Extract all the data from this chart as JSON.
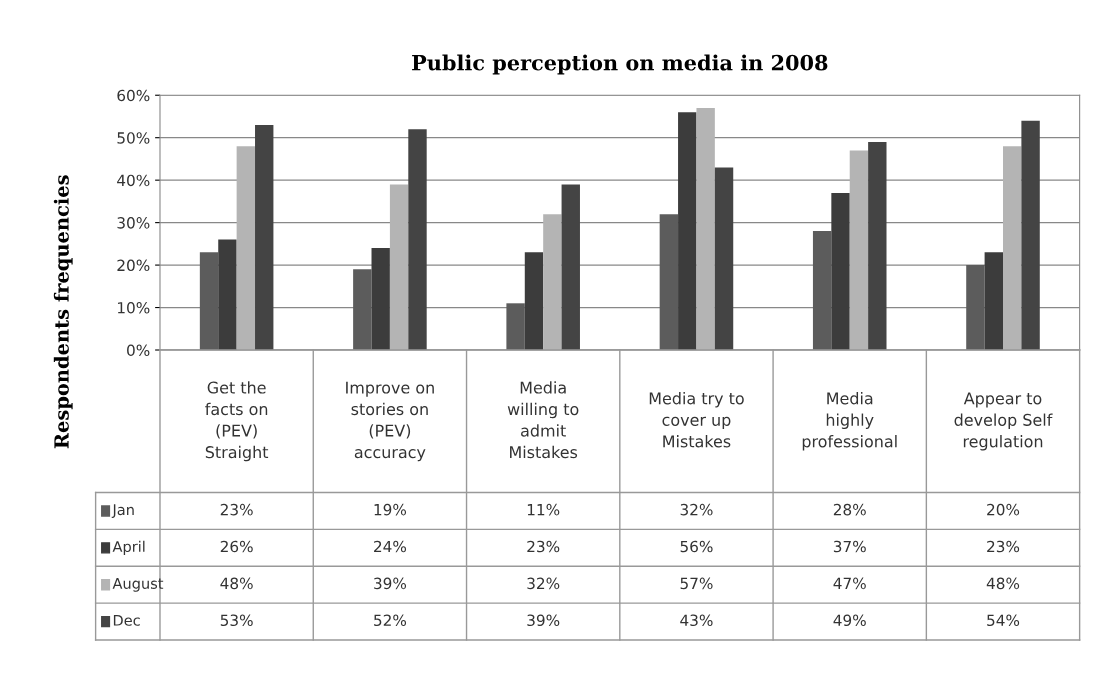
{
  "chart_data": {
    "type": "bar",
    "title": "Public perception on media in 2008",
    "ylabel": "Respondents frequencies",
    "categories": [
      "Get the\nfacts on\n(PEV)\nStraight",
      "Improve on\nstories on\n(PEV)\naccuracy",
      "Media\nwilling to\nadmit\nMistakes",
      "Media try to\ncover up\nMistakes",
      "Media\nhighly\nprofessional",
      "Appear to\ndevelop Self\nregulation"
    ],
    "series": [
      {
        "name": "Jan",
        "color": "#5c5c5c",
        "values": [
          23,
          19,
          11,
          32,
          28,
          20
        ],
        "value_labels": [
          "23%",
          "19%",
          "11%",
          "32%",
          "28%",
          "20%"
        ]
      },
      {
        "name": "April",
        "color": "#3c3c3c",
        "values": [
          26,
          24,
          23,
          56,
          37,
          23
        ],
        "value_labels": [
          "26%",
          "24%",
          "23%",
          "56%",
          "37%",
          "23%"
        ]
      },
      {
        "name": "August",
        "color": "#b4b4b4",
        "values": [
          48,
          39,
          32,
          57,
          47,
          48
        ],
        "value_labels": [
          "48%",
          "39%",
          "32%",
          "57%",
          "47%",
          "48%"
        ]
      },
      {
        "name": "Dec",
        "color": "#444444",
        "values": [
          53,
          52,
          39,
          43,
          49,
          54
        ],
        "value_labels": [
          "53%",
          "52%",
          "39%",
          "43%",
          "49%",
          "54%"
        ]
      }
    ],
    "ylim": [
      0,
      60
    ],
    "yticks": [
      {
        "value": 0,
        "label": "0%"
      },
      {
        "value": 10,
        "label": "10%"
      },
      {
        "value": 20,
        "label": "20%"
      },
      {
        "value": 30,
        "label": "30%"
      },
      {
        "value": 40,
        "label": "40%"
      },
      {
        "value": 50,
        "label": "50%"
      },
      {
        "value": 60,
        "label": "60%"
      }
    ],
    "grid": "y",
    "legend": "bottom left"
  }
}
